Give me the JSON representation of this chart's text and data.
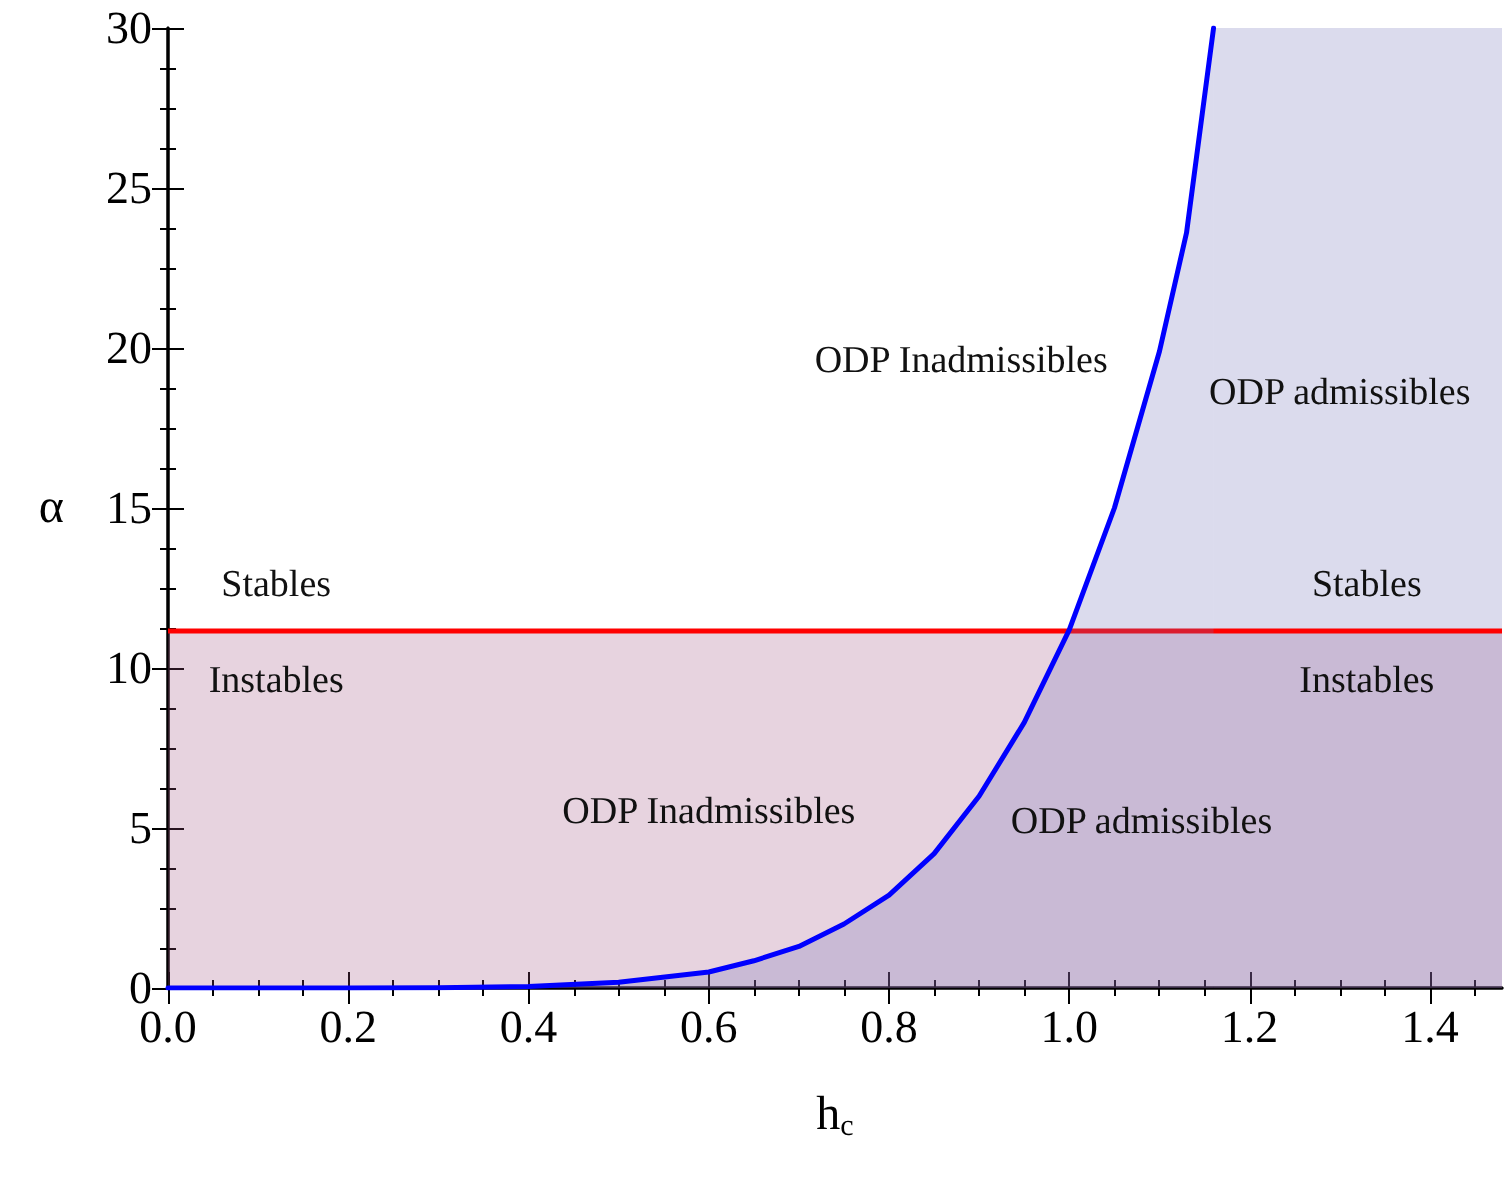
{
  "chart_data": {
    "type": "line",
    "xlabel": "h$_{c}$",
    "ylabel": "α",
    "xlim": [
      0,
      1.48
    ],
    "ylim": [
      0,
      30
    ],
    "xticks": [
      {
        "value": 0,
        "label": "0.0"
      },
      {
        "value": 0.2,
        "label": "0.2"
      },
      {
        "value": 0.4,
        "label": "0.4"
      },
      {
        "value": 0.6,
        "label": "0.6"
      },
      {
        "value": 0.8,
        "label": "0.8"
      },
      {
        "value": 1,
        "label": "1.0"
      },
      {
        "value": 1.2,
        "label": "1.2"
      },
      {
        "value": 1.4,
        "label": "1.4"
      }
    ],
    "yticks": [
      0,
      5,
      10,
      15,
      20,
      25,
      30
    ],
    "grid": false,
    "marker": "none",
    "line_style": "solid",
    "series": [
      {
        "color": "#0000ff",
        "x": [
          0,
          0.2,
          0.3,
          0.4,
          0.5,
          0.6,
          0.65,
          0.7,
          0.75,
          0.8,
          0.85,
          0.9,
          0.95,
          1.0,
          1.05,
          1.1,
          1.13,
          1.16
        ],
        "values": [
          0,
          0,
          0.01,
          0.05,
          0.18,
          0.5,
          0.85,
          1.3,
          2.0,
          2.9,
          4.2,
          6.0,
          8.3,
          11.2,
          15.0,
          19.9,
          23.6,
          30
        ]
      }
    ],
    "ref_lines": [
      {
        "axis": "y",
        "value": 11.2,
        "color": "#ff0000",
        "line_style": "solid"
      }
    ],
    "bands": [
      {
        "axis": "y",
        "from": 0,
        "to": 11.2,
        "color": "#a05080"
      },
      {
        "axis": "x",
        "from": 1.16,
        "to": 1.48,
        "color": "#7070b8"
      }
    ],
    "annotations": [
      "Stables",
      "Instables",
      "ODP Inadmissibles",
      "ODP admissibles",
      "Stables",
      "Instables",
      "ODP Inadmissibles",
      "ODP admissibles"
    ]
  }
}
